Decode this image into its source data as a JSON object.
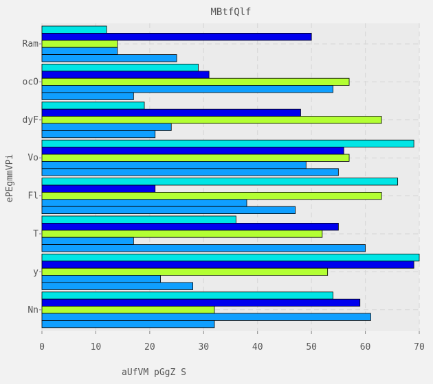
{
  "chart_data": {
    "type": "bar",
    "orientation": "horizontal",
    "title": "MBtfQlf",
    "xlabel": "aUfVM pGgZ S",
    "ylabel": "ePEgmmVPi",
    "xlim": [
      0,
      70
    ],
    "xticks": [
      0,
      10,
      20,
      30,
      40,
      50,
      60,
      70
    ],
    "grid": true,
    "categories": [
      "Ram",
      "ocO",
      "dyF",
      "Vo",
      "Fl",
      "T",
      "y",
      "Nn"
    ],
    "series": [
      {
        "color": "#00e5e5",
        "values": [
          12,
          29,
          19,
          69,
          66,
          36,
          70,
          54
        ]
      },
      {
        "color": "#0000ee",
        "values": [
          50,
          31,
          48,
          56,
          21,
          55,
          69,
          59
        ]
      },
      {
        "color": "#b3ff33",
        "values": [
          14,
          57,
          63,
          57,
          63,
          52,
          53,
          32
        ]
      },
      {
        "color": "#0f9fff",
        "values": [
          14,
          54,
          24,
          49,
          38,
          17,
          22,
          61
        ]
      },
      {
        "color": "#0f9fff",
        "values": [
          25,
          17,
          21,
          55,
          47,
          60,
          28,
          32
        ]
      }
    ]
  }
}
